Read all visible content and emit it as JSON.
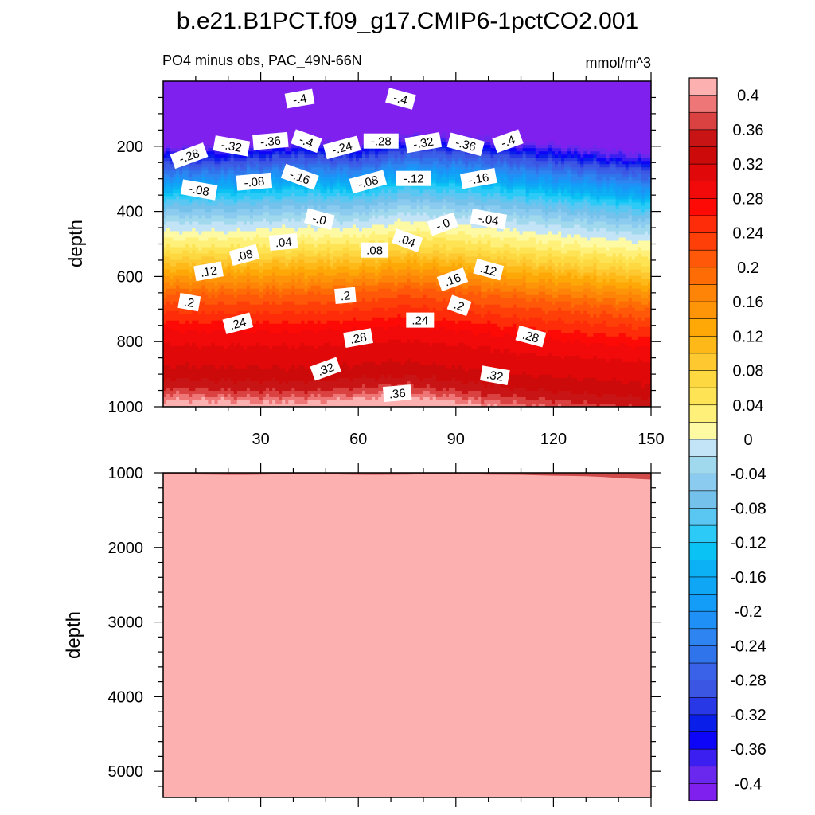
{
  "title": "b.e21.B1PCT.f09_g17.CMIP6-1pctCO2.001",
  "chart_data": {
    "type": "heatmap",
    "units": "mmol/m^3",
    "colorbar": {
      "levels": [
        -0.42,
        -0.4,
        -0.38,
        -0.36,
        -0.34,
        -0.32,
        -0.3,
        -0.28,
        -0.26,
        -0.24,
        -0.22,
        -0.2,
        -0.18,
        -0.16,
        -0.14,
        -0.12,
        -0.1,
        -0.08,
        -0.06,
        -0.04,
        -0.02,
        0.0,
        0.02,
        0.04,
        0.06,
        0.08,
        0.1,
        0.12,
        0.14,
        0.16,
        0.18,
        0.2,
        0.22,
        0.24,
        0.26,
        0.28,
        0.3,
        0.32,
        0.34,
        0.36,
        0.38,
        0.4,
        0.42
      ],
      "colors": [
        "#8020ee",
        "#6a28ee",
        "#3b1ef0",
        "#0d05f8",
        "#0a1eea",
        "#2838e6",
        "#3c56e4",
        "#3a62e8",
        "#3074ec",
        "#2e84f0",
        "#1f90f6",
        "#139cf8",
        "#0fa6f6",
        "#0cb0f4",
        "#0ac2f4",
        "#2ccaf6",
        "#5ac6f2",
        "#74c2ec",
        "#8ccbf0",
        "#a0d8ee",
        "#c2e4f6",
        "#fefaa4",
        "#fef078",
        "#fee454",
        "#fed840",
        "#fec830",
        "#feb818",
        "#fea808",
        "#fe9408",
        "#fe8408",
        "#fe6c06",
        "#fe5808",
        "#fe4008",
        "#fe2c08",
        "#fe0a06",
        "#f20a0a",
        "#e00808",
        "#cc0a0a",
        "#c81414",
        "#da4242",
        "#ee7676",
        "#fcb0b0"
      ],
      "tick_labels": [
        "0.4",
        "0.36",
        "0.32",
        "0.28",
        "0.24",
        "0.2",
        "0.16",
        "0.12",
        "0.08",
        "0.04",
        "0",
        "-0.04",
        "-0.08",
        "-0.12",
        "-0.16",
        "-0.2",
        "-0.24",
        "-0.28",
        "-0.32",
        "-0.36",
        "-0.4"
      ]
    },
    "panels": [
      {
        "name": "upper",
        "left_string": "PO4 minus obs, PAC_49N-66N",
        "right_string": "mmol/m^3",
        "ylabel": "depth",
        "xlim": [
          0,
          150
        ],
        "ylim": [
          1000,
          0
        ],
        "x_ticks": [
          30,
          60,
          90,
          120,
          150
        ],
        "x_tick_labels": [
          "30",
          "60",
          "90",
          "120",
          "150"
        ],
        "y_ticks": [
          200,
          400,
          600,
          800,
          1000
        ],
        "y_tick_labels": [
          "200",
          "400",
          "600",
          "800",
          "1000"
        ],
        "field": {
          "profile_depths": [
            0,
            150,
            180,
            195,
            205,
            215,
            230,
            260,
            300,
            340,
            380,
            420,
            450,
            470,
            500,
            540,
            580,
            620,
            660,
            700,
            740,
            760,
            790,
            820,
            860,
            900,
            940,
            970,
            1000
          ],
          "profile_values": [
            -0.43,
            -0.43,
            -0.41,
            -0.39,
            -0.37,
            -0.35,
            -0.31,
            -0.26,
            -0.19,
            -0.12,
            -0.07,
            -0.03,
            -0.005,
            0.01,
            0.035,
            0.075,
            0.12,
            0.16,
            0.2,
            0.23,
            0.255,
            0.27,
            0.29,
            0.3,
            0.31,
            0.325,
            0.345,
            0.37,
            0.41
          ],
          "upper_shift": [
            [
              0,
              20
            ],
            [
              20,
              15
            ],
            [
              40,
              -5
            ],
            [
              60,
              5
            ],
            [
              75,
              -25
            ],
            [
              90,
              -20
            ],
            [
              110,
              -5
            ],
            [
              130,
              15
            ],
            [
              150,
              35
            ]
          ],
          "lower_shift": [
            [
              0,
              -15
            ],
            [
              40,
              -5
            ],
            [
              75,
              -25
            ],
            [
              110,
              15
            ],
            [
              150,
              45
            ]
          ]
        },
        "contour_labels": [
          {
            "text": "-.4",
            "x": 42,
            "y": 55
          },
          {
            "text": "-.4",
            "x": 73,
            "y": 55
          },
          {
            "text": "-.28",
            "x": 8,
            "y": 230
          },
          {
            "text": "-.32",
            "x": 21,
            "y": 200
          },
          {
            "text": "-.36",
            "x": 33,
            "y": 185
          },
          {
            "text": "-.4",
            "x": 44,
            "y": 185
          },
          {
            "text": "-.24",
            "x": 55,
            "y": 205
          },
          {
            "text": "-.28",
            "x": 67,
            "y": 185
          },
          {
            "text": "-.32",
            "x": 80,
            "y": 190
          },
          {
            "text": "-.36",
            "x": 93,
            "y": 195
          },
          {
            "text": "-.4",
            "x": 106,
            "y": 185
          },
          {
            "text": "-.08",
            "x": 11,
            "y": 335
          },
          {
            "text": "-.08",
            "x": 28,
            "y": 310
          },
          {
            "text": "-.16",
            "x": 42,
            "y": 295
          },
          {
            "text": "-.08",
            "x": 63,
            "y": 310
          },
          {
            "text": "-.12",
            "x": 77,
            "y": 300
          },
          {
            "text": "-.16",
            "x": 97,
            "y": 300
          },
          {
            "text": "-.0",
            "x": 48,
            "y": 425
          },
          {
            "text": "-.0",
            "x": 86,
            "y": 440
          },
          {
            "text": "-.04",
            "x": 100,
            "y": 425
          },
          {
            "text": ".04",
            "x": 37,
            "y": 495
          },
          {
            "text": ".04",
            "x": 75,
            "y": 490
          },
          {
            "text": ".08",
            "x": 25,
            "y": 535
          },
          {
            "text": ".08",
            "x": 65,
            "y": 520
          },
          {
            "text": ".12",
            "x": 14,
            "y": 585
          },
          {
            "text": ".12",
            "x": 100,
            "y": 580
          },
          {
            "text": ".16",
            "x": 89,
            "y": 610
          },
          {
            "text": ".2",
            "x": 8,
            "y": 680
          },
          {
            "text": ".2",
            "x": 56,
            "y": 660
          },
          {
            "text": ".2",
            "x": 91,
            "y": 690
          },
          {
            "text": ".24",
            "x": 23,
            "y": 745
          },
          {
            "text": ".24",
            "x": 79,
            "y": 735
          },
          {
            "text": ".28",
            "x": 60,
            "y": 790
          },
          {
            "text": ".28",
            "x": 113,
            "y": 785
          },
          {
            "text": ".32",
            "x": 50,
            "y": 885
          },
          {
            "text": ".32",
            "x": 102,
            "y": 905
          },
          {
            "text": ".36",
            "x": 72,
            "y": 960
          }
        ]
      },
      {
        "name": "lower",
        "ylabel": "depth",
        "xlim": [
          0,
          150
        ],
        "ylim": [
          5350,
          1000
        ],
        "y_ticks": [
          1000,
          2000,
          3000,
          4000,
          5000
        ],
        "y_tick_labels": [
          "1000",
          "2000",
          "3000",
          "4000",
          "5000"
        ],
        "fill_color": "#fcb0b0"
      }
    ]
  }
}
